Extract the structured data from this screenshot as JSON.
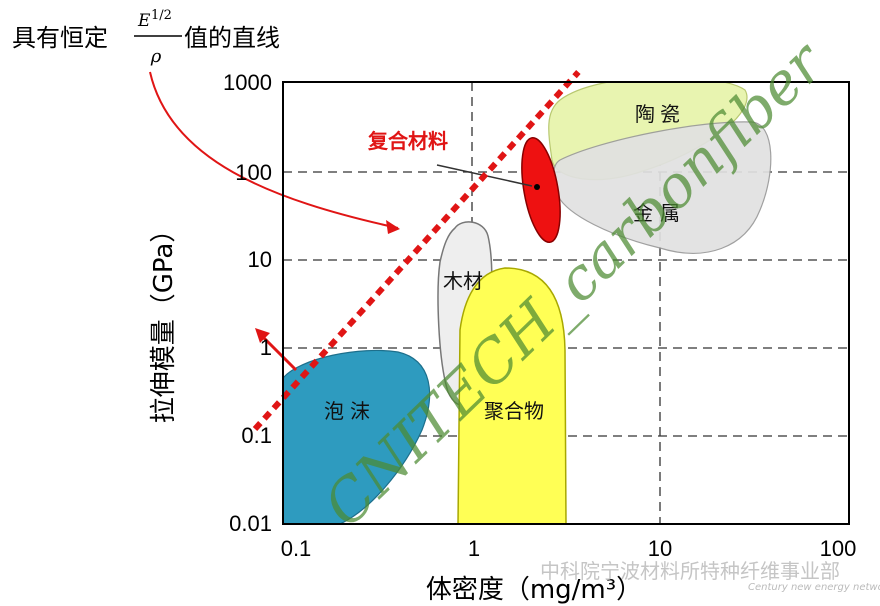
{
  "chart_data": {
    "type": "scatter",
    "title": "",
    "xlabel": "体密度（mg/m³）",
    "ylabel": "拉伸模量（GPa）",
    "x_scale": "log",
    "y_scale": "log",
    "xlim": [
      0.1,
      100
    ],
    "ylim": [
      0.01,
      1000
    ],
    "x_ticks": [
      "0.1",
      "1",
      "10",
      "100"
    ],
    "y_ticks": [
      "0.01",
      "0.1",
      "1",
      "10",
      "100",
      "1000"
    ],
    "grid": true,
    "regions": [
      {
        "name": "泡沫",
        "color": "#2e9bbf"
      },
      {
        "name": "木材",
        "color": "#eeeeee"
      },
      {
        "name": "聚合物",
        "color": "#ffff55"
      },
      {
        "name": "复合材料",
        "color": "#ee1111"
      },
      {
        "name": "金属",
        "color": "#e1e1e1"
      },
      {
        "name": "陶瓷",
        "color": "#e8f4b0"
      }
    ],
    "guide_line": {
      "points": [
        {
          "x": 0.1,
          "y": 0.2
        },
        {
          "x": 3.1,
          "y": 1000
        }
      ],
      "color": "#e01515"
    },
    "annotation_formula": {
      "prefix": "具有恒定",
      "numerator": "E",
      "exponent": "1/2",
      "denominator": "ρ",
      "suffix": "值的直线"
    },
    "composite_label": "复合材料",
    "watermark_text": "CNITECH_carbonfiber",
    "watermark_footer": "中科院宁波材料所特种纤维事业部",
    "watermark_footer_en": "Century new energy network"
  }
}
